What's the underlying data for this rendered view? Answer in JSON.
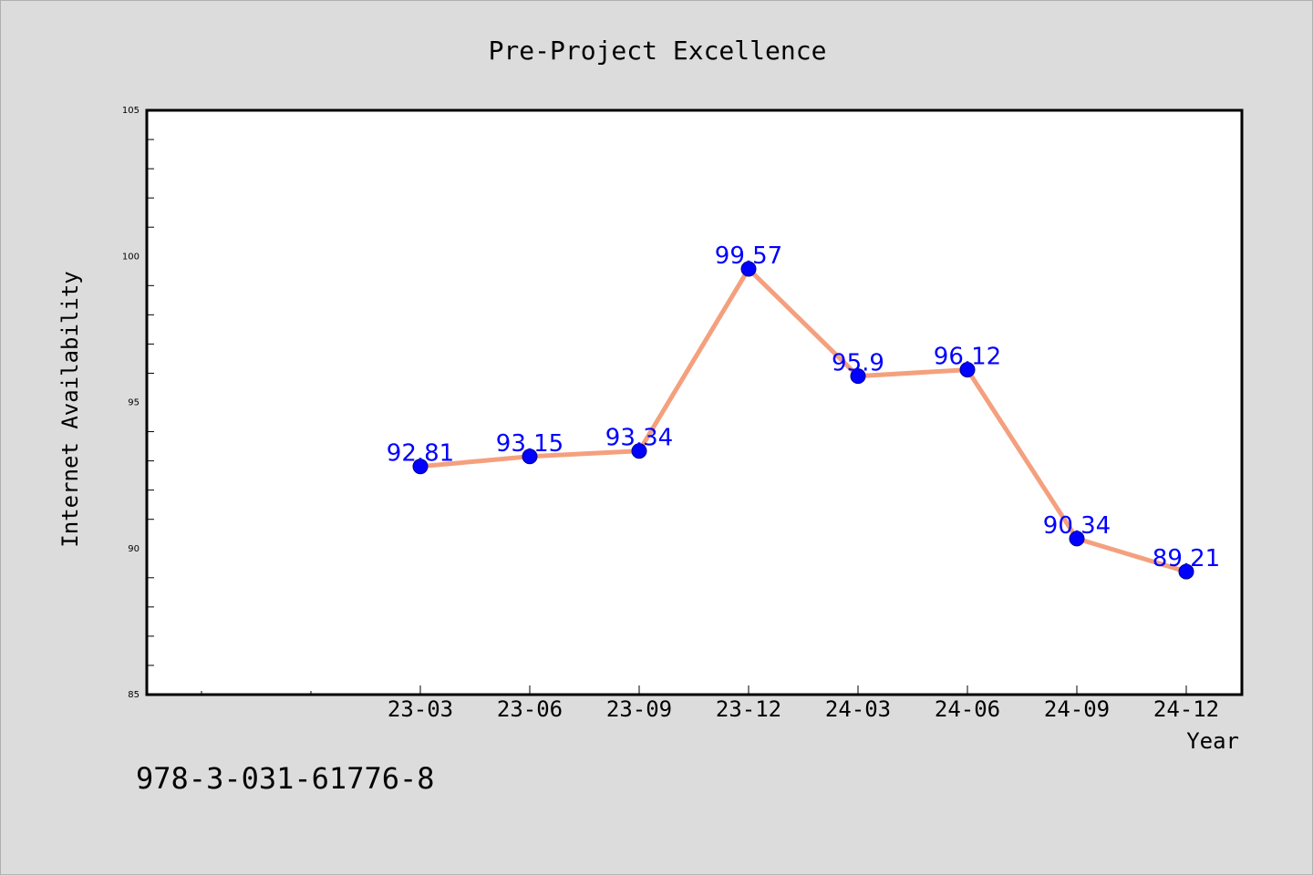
{
  "colors": {
    "background": "#dcdcdc",
    "plot_background": "#ffffff",
    "line": "#f4a07e",
    "marker": "#0000ff",
    "data_label": "#0000ff"
  },
  "footer": {
    "text": "978-3-031-61776-8"
  },
  "chart_data": {
    "type": "line",
    "title": "Pre-Project Excellence",
    "xlabel": "Year",
    "ylabel": "Internet Availability",
    "categories": [
      "23-03",
      "23-06",
      "23-09",
      "23-12",
      "24-03",
      "24-06",
      "24-09",
      "24-12"
    ],
    "series": [
      {
        "values": [
          92.81,
          93.15,
          93.34,
          99.57,
          95.9,
          96.12,
          90.34,
          89.21
        ],
        "labels": [
          "92.81",
          "93.15",
          "93.34",
          "99.57",
          "95.9",
          "96.12",
          "90.34",
          "89.21"
        ]
      }
    ],
    "ylim": [
      85,
      105
    ],
    "yticks": [
      85,
      90,
      95,
      100,
      105
    ],
    "grid": false,
    "legend": "none"
  }
}
